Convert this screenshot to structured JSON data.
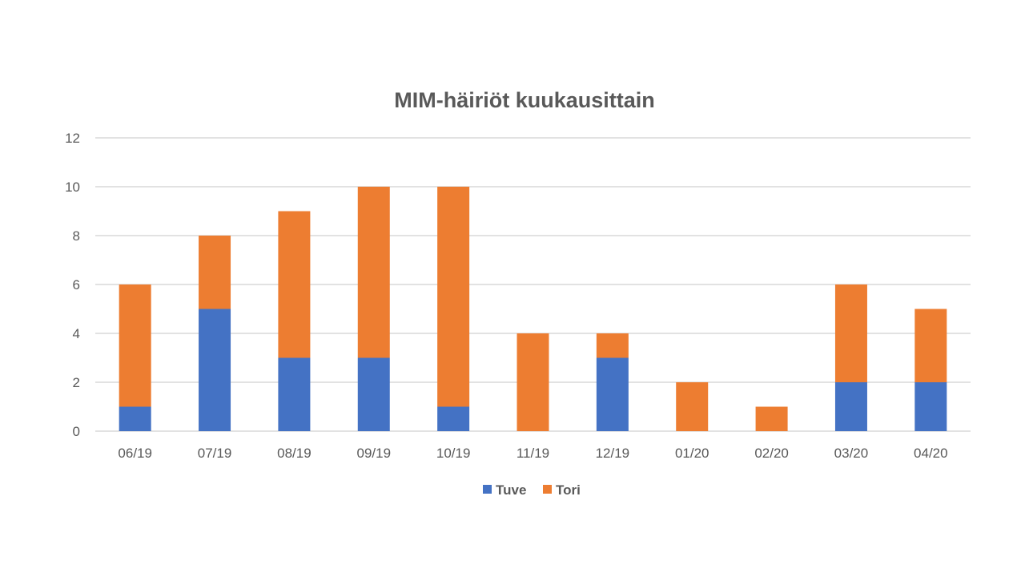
{
  "chart_data": {
    "type": "bar",
    "stacked": true,
    "title": "MIM-häiriöt kuukausittain",
    "xlabel": "",
    "ylabel": "",
    "categories": [
      "06/19",
      "07/19",
      "08/19",
      "09/19",
      "10/19",
      "11/19",
      "12/19",
      "01/20",
      "02/20",
      "03/20",
      "04/20"
    ],
    "series": [
      {
        "name": "Tuve",
        "color": "#4472c4",
        "values": [
          1,
          5,
          3,
          3,
          1,
          0,
          3,
          0,
          0,
          2,
          2
        ]
      },
      {
        "name": "Tori",
        "color": "#ed7d31",
        "values": [
          5,
          3,
          6,
          7,
          9,
          4,
          1,
          2,
          1,
          4,
          3
        ]
      }
    ],
    "ylim": [
      0,
      12
    ],
    "yticks": [
      "0",
      "2",
      "4",
      "6",
      "8",
      "10",
      "12"
    ],
    "grid": true,
    "legend_position": "bottom"
  }
}
